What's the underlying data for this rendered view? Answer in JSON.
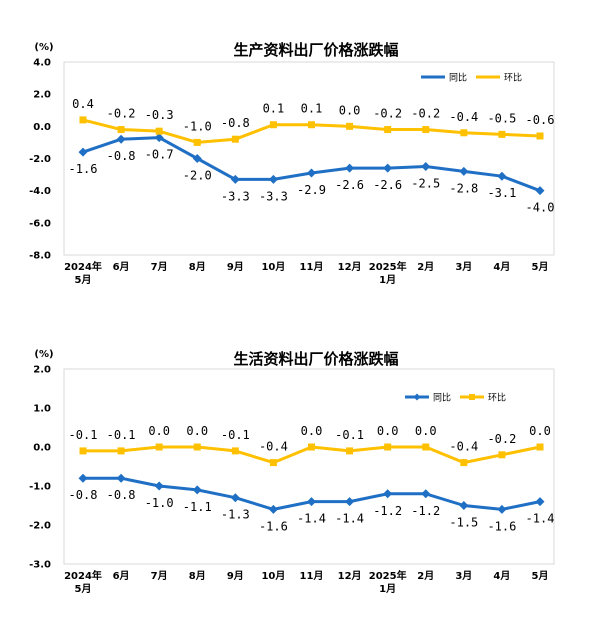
{
  "chart_data": [
    {
      "type": "line",
      "title": "生产资料出厂价格涨跌幅",
      "unit": "(%)",
      "categories": [
        "2024年\n5月",
        "6月",
        "7月",
        "8月",
        "9月",
        "10月",
        "11月",
        "12月",
        "2025年\n1月",
        "2月",
        "3月",
        "4月",
        "5月"
      ],
      "ylim": [
        -8.0,
        4.0
      ],
      "yticks": [
        "4.0",
        "2.0",
        "0.0",
        "-2.0",
        "-4.0",
        "-6.0",
        "-8.0"
      ],
      "ytick_values": [
        4,
        2,
        0,
        -2,
        -4,
        -6,
        -8
      ],
      "legend_position": "top-right",
      "series": [
        {
          "name": "同比",
          "color": "#1f6fc5",
          "marker": "diamond",
          "label_position": "below",
          "values": [
            -1.6,
            -0.8,
            -0.7,
            -2.0,
            -3.3,
            -3.3,
            -2.9,
            -2.6,
            -2.6,
            -2.5,
            -2.8,
            -3.1,
            -4.0
          ],
          "labels": [
            "-1.6",
            "-0.8",
            "-0.7",
            "-2.0",
            "-3.3",
            "-3.3",
            "-2.9",
            "-2.6",
            "-2.6",
            "-2.5",
            "-2.8",
            "-3.1",
            "-4.0"
          ]
        },
        {
          "name": "环比",
          "color": "#ffc000",
          "marker": "square",
          "label_position": "above",
          "values": [
            0.4,
            -0.2,
            -0.3,
            -1.0,
            -0.8,
            0.1,
            0.1,
            0.0,
            -0.2,
            -0.2,
            -0.4,
            -0.5,
            -0.6
          ],
          "labels": [
            "0.4",
            "-0.2",
            "-0.3",
            "-1.0",
            "-0.8",
            "0.1",
            "0.1",
            "0.0",
            "-0.2",
            "-0.2",
            "-0.4",
            "-0.5",
            "-0.6"
          ]
        }
      ]
    },
    {
      "type": "line",
      "title": "生活资料出厂价格涨跌幅",
      "unit": "(%)",
      "categories": [
        "2024年\n5月",
        "6月",
        "7月",
        "8月",
        "9月",
        "10月",
        "11月",
        "12月",
        "2025年\n1月",
        "2月",
        "3月",
        "4月",
        "5月"
      ],
      "ylim": [
        -3.0,
        2.0
      ],
      "yticks": [
        "2.0",
        "1.0",
        "0.0",
        "-1.0",
        "-2.0",
        "-3.0"
      ],
      "ytick_values": [
        2,
        1,
        0,
        -1,
        -2,
        -3
      ],
      "legend_position": "top-right",
      "series": [
        {
          "name": "同比",
          "color": "#1f6fc5",
          "marker": "diamond",
          "label_position": "below",
          "values": [
            -0.8,
            -0.8,
            -1.0,
            -1.1,
            -1.3,
            -1.6,
            -1.4,
            -1.4,
            -1.2,
            -1.2,
            -1.5,
            -1.6,
            -1.4
          ],
          "labels": [
            "-0.8",
            "-0.8",
            "-1.0",
            "-1.1",
            "-1.3",
            "-1.6",
            "-1.4",
            "-1.4",
            "-1.2",
            "-1.2",
            "-1.5",
            "-1.6",
            "-1.4"
          ]
        },
        {
          "name": "环比",
          "color": "#ffc000",
          "marker": "square",
          "label_position": "above",
          "values": [
            -0.1,
            -0.1,
            0.0,
            0.0,
            -0.1,
            -0.4,
            0.0,
            -0.1,
            0.0,
            0.0,
            -0.4,
            -0.2,
            0.0
          ],
          "labels": [
            "-0.1",
            "-0.1",
            "0.0",
            "0.0",
            "-0.1",
            "-0.4",
            "0.0",
            "-0.1",
            "0.0",
            "0.0",
            "-0.4",
            "-0.2",
            "0.0"
          ]
        }
      ]
    }
  ]
}
